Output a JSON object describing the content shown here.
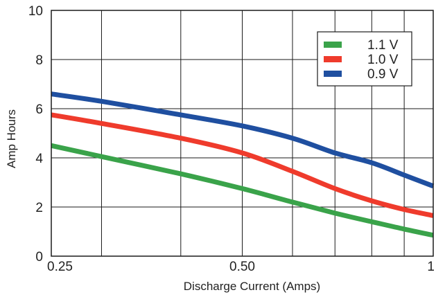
{
  "chart_data": {
    "type": "line",
    "title": "",
    "xlabel": "Discharge Current (Amps)",
    "ylabel": "Amp Hours",
    "x_scale": "log",
    "xlim": [
      0.25,
      1
    ],
    "ylim": [
      0,
      10
    ],
    "x_ticks": [
      {
        "value": 0.25,
        "label": "0.25"
      },
      {
        "value": 0.5,
        "label": "0.50"
      },
      {
        "value": 1,
        "label": "1"
      }
    ],
    "x_grid": [
      0.3,
      0.4,
      0.6,
      0.7,
      0.8,
      0.9
    ],
    "y_ticks": [
      {
        "value": 0,
        "label": "0"
      },
      {
        "value": 2,
        "label": "2"
      },
      {
        "value": 4,
        "label": "4"
      },
      {
        "value": 6,
        "label": "6"
      },
      {
        "value": 8,
        "label": "8"
      },
      {
        "value": 10,
        "label": "10"
      }
    ],
    "grid": true,
    "legend_position": "top-right",
    "series": [
      {
        "name": "1.1 V",
        "color": "#3aa34a",
        "points": [
          [
            0.25,
            4.5
          ],
          [
            0.3,
            4.05
          ],
          [
            0.4,
            3.35
          ],
          [
            0.5,
            2.75
          ],
          [
            0.6,
            2.2
          ],
          [
            0.7,
            1.75
          ],
          [
            0.8,
            1.4
          ],
          [
            0.9,
            1.1
          ],
          [
            1,
            0.85
          ]
        ]
      },
      {
        "name": "1.0 V",
        "color": "#ef3b2c",
        "points": [
          [
            0.25,
            5.75
          ],
          [
            0.3,
            5.4
          ],
          [
            0.4,
            4.8
          ],
          [
            0.5,
            4.2
          ],
          [
            0.6,
            3.45
          ],
          [
            0.7,
            2.75
          ],
          [
            0.8,
            2.25
          ],
          [
            0.9,
            1.9
          ],
          [
            1,
            1.65
          ]
        ]
      },
      {
        "name": "0.9 V",
        "color": "#1f4fa0",
        "points": [
          [
            0.25,
            6.6
          ],
          [
            0.3,
            6.3
          ],
          [
            0.4,
            5.75
          ],
          [
            0.5,
            5.3
          ],
          [
            0.6,
            4.8
          ],
          [
            0.7,
            4.2
          ],
          [
            0.8,
            3.8
          ],
          [
            0.9,
            3.3
          ],
          [
            1,
            2.85
          ]
        ]
      }
    ]
  }
}
